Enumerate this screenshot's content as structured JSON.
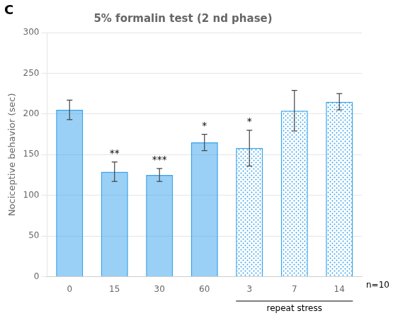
{
  "chart_data": {
    "type": "bar",
    "title": "5% formalin test (2 nd phase)",
    "ylabel": "Nociceptive behavior (sec)",
    "panel_label": "C",
    "categories": [
      "0",
      "15",
      "30",
      "60",
      "3",
      "7",
      "14"
    ],
    "values": [
      205,
      129,
      125,
      165,
      158,
      204,
      215
    ],
    "errors": [
      12,
      12,
      8,
      10,
      22,
      25,
      10
    ],
    "annotations": [
      {
        "text": "**",
        "category": "15"
      },
      {
        "text": "***",
        "category": "30"
      },
      {
        "text": "*",
        "category": "60"
      },
      {
        "text": "*",
        "category": "3"
      },
      {
        "text": "repeat stress",
        "categories": [
          "3",
          "7",
          "14"
        ]
      },
      {
        "text": "n=10"
      }
    ],
    "ylim": [
      0,
      300
    ],
    "yticks": [
      0,
      50,
      100,
      150,
      200,
      250,
      300
    ],
    "grid": true
  }
}
